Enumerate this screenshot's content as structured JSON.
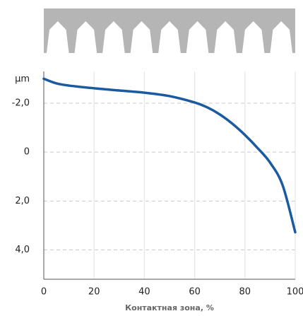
{
  "chart_data": {
    "type": "line",
    "y_label": "µm",
    "x_label": "Контактная зона, %",
    "x": [
      0,
      5,
      10,
      20,
      30,
      40,
      50,
      60,
      65,
      70,
      75,
      80,
      85,
      90,
      95,
      100
    ],
    "series": [
      {
        "color": "#1a5aa0",
        "values": [
          -3.0,
          -2.81,
          -2.72,
          -2.61,
          -2.52,
          -2.43,
          -2.29,
          -2.03,
          -1.83,
          -1.54,
          -1.16,
          -0.7,
          -0.17,
          0.43,
          1.36,
          3.28
        ]
      }
    ],
    "xlim": [
      0,
      100
    ],
    "xticks": [
      0,
      20,
      40,
      60,
      80,
      100
    ],
    "ylim": [
      -3.3,
      5.2
    ],
    "y_inverted": true,
    "yticks": [
      {
        "value": -2,
        "label": "-2,0"
      },
      0,
      {
        "value": 2,
        "label": "2,0"
      },
      {
        "value": 4,
        "label": "4,0"
      }
    ],
    "grid": true
  }
}
